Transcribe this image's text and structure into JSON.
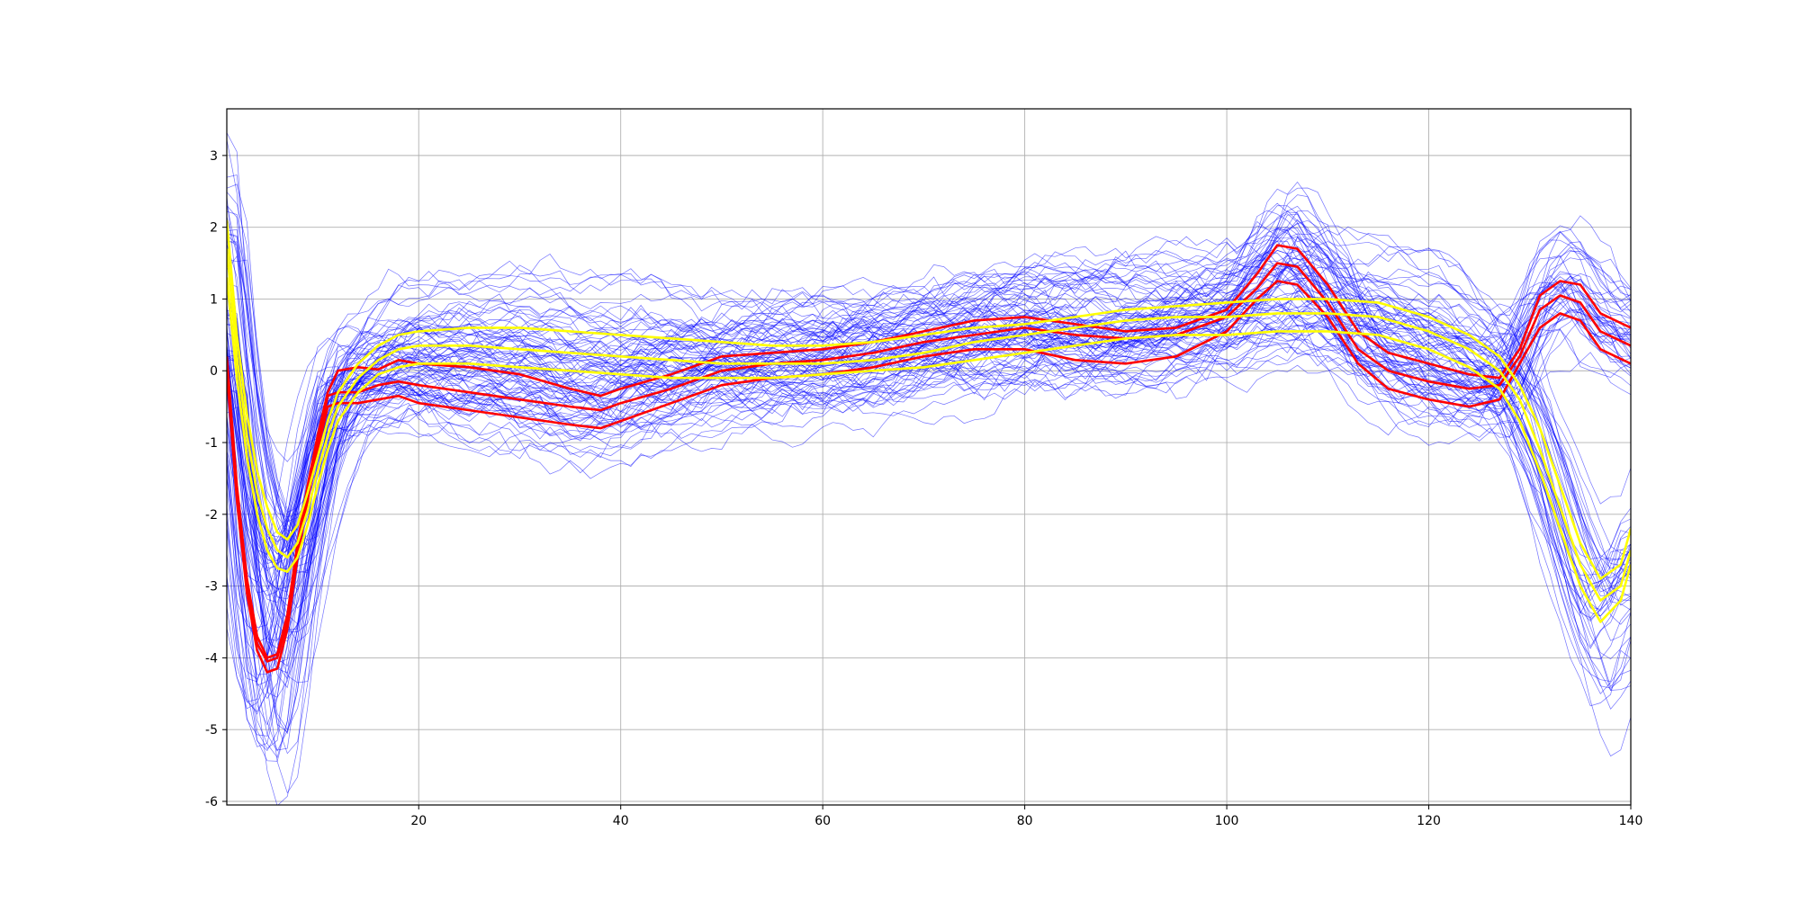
{
  "chart_data": {
    "type": "line",
    "title": "",
    "xlabel": "",
    "ylabel": "",
    "xlim": [
      1,
      140
    ],
    "ylim": [
      -6.05,
      3.65
    ],
    "x_ticks": [
      20,
      40,
      60,
      80,
      100,
      120,
      140
    ],
    "y_ticks": [
      3,
      2,
      1,
      0,
      -1,
      -2,
      -3,
      -4,
      -5,
      -6
    ],
    "x_tick_labels": [
      "20",
      "40",
      "60",
      "80",
      "100",
      "120",
      "140"
    ],
    "y_tick_labels": [
      "3",
      "2",
      "1",
      "0",
      "-1",
      "-2",
      "-3",
      "-4",
      "-5",
      "-6"
    ],
    "grid": true,
    "legend": "none",
    "colors": {
      "individual": "#0000ff",
      "cluster_red": "#ff0000",
      "cluster_yellow": "#ffff00"
    },
    "background_series_count": 90,
    "series": [
      {
        "group": "red",
        "x": [
          1,
          2,
          3,
          4,
          5,
          6,
          7,
          8,
          9,
          10,
          11,
          12,
          14,
          16,
          18,
          20,
          25,
          30,
          35,
          38,
          40,
          45,
          50,
          55,
          60,
          65,
          70,
          75,
          80,
          85,
          90,
          95,
          100,
          103,
          105,
          107,
          110,
          113,
          116,
          120,
          124,
          127,
          129,
          131,
          133,
          135,
          137,
          140
        ],
        "values": [
          0.2,
          -1.6,
          -2.9,
          -3.7,
          -4.0,
          -3.95,
          -3.4,
          -2.4,
          -1.6,
          -0.9,
          -0.3,
          0.0,
          0.05,
          0.02,
          0.15,
          0.1,
          0.05,
          -0.05,
          -0.25,
          -0.35,
          -0.25,
          -0.05,
          0.2,
          0.25,
          0.3,
          0.4,
          0.55,
          0.7,
          0.75,
          0.65,
          0.55,
          0.6,
          0.85,
          1.35,
          1.75,
          1.7,
          1.2,
          0.55,
          0.25,
          0.1,
          -0.05,
          -0.1,
          0.3,
          1.05,
          1.25,
          1.2,
          0.8,
          0.6
        ]
      },
      {
        "group": "red",
        "x": [
          1,
          2,
          3,
          4,
          5,
          6,
          7,
          8,
          9,
          10,
          11,
          12,
          14,
          16,
          18,
          20,
          25,
          30,
          35,
          38,
          40,
          45,
          50,
          55,
          60,
          65,
          70,
          75,
          80,
          85,
          90,
          95,
          100,
          103,
          105,
          107,
          110,
          113,
          116,
          120,
          124,
          127,
          129,
          131,
          133,
          135,
          137,
          140
        ],
        "values": [
          0.1,
          -1.7,
          -3.0,
          -3.8,
          -4.05,
          -4.0,
          -3.5,
          -2.5,
          -1.7,
          -1.0,
          -0.35,
          -0.3,
          -0.3,
          -0.2,
          -0.15,
          -0.2,
          -0.3,
          -0.4,
          -0.5,
          -0.55,
          -0.45,
          -0.25,
          0.0,
          0.1,
          0.15,
          0.25,
          0.4,
          0.5,
          0.6,
          0.5,
          0.45,
          0.5,
          0.75,
          1.15,
          1.5,
          1.45,
          0.95,
          0.3,
          0.0,
          -0.15,
          -0.25,
          -0.2,
          0.2,
          0.85,
          1.05,
          0.95,
          0.55,
          0.35
        ]
      },
      {
        "group": "red",
        "x": [
          1,
          2,
          3,
          4,
          5,
          6,
          7,
          8,
          9,
          10,
          11,
          12,
          14,
          16,
          18,
          20,
          25,
          30,
          35,
          38,
          40,
          45,
          50,
          55,
          60,
          65,
          70,
          75,
          80,
          85,
          90,
          95,
          100,
          103,
          105,
          107,
          110,
          113,
          116,
          120,
          124,
          127,
          129,
          131,
          133,
          135,
          137,
          140
        ],
        "values": [
          0.0,
          -1.8,
          -3.1,
          -3.9,
          -4.2,
          -4.15,
          -3.6,
          -2.6,
          -1.8,
          -1.1,
          -0.5,
          -0.45,
          -0.45,
          -0.4,
          -0.35,
          -0.45,
          -0.55,
          -0.65,
          -0.75,
          -0.8,
          -0.7,
          -0.45,
          -0.2,
          -0.1,
          -0.05,
          0.05,
          0.2,
          0.3,
          0.3,
          0.15,
          0.1,
          0.2,
          0.55,
          1.0,
          1.25,
          1.2,
          0.75,
          0.1,
          -0.25,
          -0.4,
          -0.5,
          -0.4,
          0.1,
          0.6,
          0.8,
          0.7,
          0.3,
          0.1
        ]
      },
      {
        "group": "yellow",
        "x": [
          1,
          2,
          3,
          4,
          5,
          6,
          7,
          8,
          9,
          10,
          11,
          12,
          14,
          16,
          18,
          20,
          25,
          30,
          35,
          40,
          45,
          50,
          55,
          60,
          65,
          70,
          75,
          80,
          85,
          90,
          95,
          100,
          105,
          110,
          115,
          120,
          124,
          127,
          129,
          131,
          133,
          135,
          137,
          139,
          140
        ],
        "values": [
          2.1,
          0.5,
          -0.6,
          -1.4,
          -1.9,
          -2.25,
          -2.35,
          -2.15,
          -1.7,
          -1.2,
          -0.7,
          -0.3,
          0.1,
          0.35,
          0.5,
          0.55,
          0.6,
          0.6,
          0.55,
          0.5,
          0.45,
          0.4,
          0.35,
          0.35,
          0.4,
          0.5,
          0.6,
          0.65,
          0.75,
          0.85,
          0.9,
          0.95,
          1.0,
          1.0,
          0.95,
          0.75,
          0.5,
          0.2,
          -0.2,
          -0.8,
          -1.6,
          -2.4,
          -2.9,
          -2.7,
          -2.2
        ]
      },
      {
        "group": "yellow",
        "x": [
          1,
          2,
          3,
          4,
          5,
          6,
          7,
          8,
          9,
          10,
          11,
          12,
          14,
          16,
          18,
          20,
          25,
          30,
          35,
          40,
          45,
          50,
          55,
          60,
          65,
          70,
          75,
          80,
          85,
          90,
          95,
          100,
          105,
          110,
          115,
          120,
          124,
          127,
          129,
          131,
          133,
          135,
          137,
          139,
          140
        ],
        "values": [
          1.7,
          0.2,
          -0.9,
          -1.7,
          -2.2,
          -2.5,
          -2.6,
          -2.4,
          -1.95,
          -1.4,
          -0.9,
          -0.5,
          -0.1,
          0.15,
          0.3,
          0.35,
          0.35,
          0.3,
          0.25,
          0.2,
          0.15,
          0.1,
          0.1,
          0.1,
          0.15,
          0.25,
          0.4,
          0.5,
          0.6,
          0.7,
          0.75,
          0.75,
          0.8,
          0.8,
          0.75,
          0.55,
          0.3,
          0.0,
          -0.4,
          -1.1,
          -1.9,
          -2.7,
          -3.2,
          -3.0,
          -2.5
        ]
      },
      {
        "group": "yellow",
        "x": [
          1,
          2,
          3,
          4,
          5,
          6,
          7,
          8,
          9,
          10,
          11,
          12,
          14,
          16,
          18,
          20,
          25,
          30,
          35,
          40,
          45,
          50,
          55,
          60,
          65,
          70,
          75,
          80,
          85,
          90,
          95,
          100,
          105,
          110,
          115,
          120,
          124,
          127,
          129,
          131,
          133,
          135,
          137,
          139,
          140
        ],
        "values": [
          1.3,
          -0.1,
          -1.2,
          -2.0,
          -2.5,
          -2.75,
          -2.8,
          -2.6,
          -2.15,
          -1.6,
          -1.1,
          -0.7,
          -0.3,
          -0.05,
          0.05,
          0.1,
          0.1,
          0.05,
          0.0,
          -0.05,
          -0.1,
          -0.1,
          -0.1,
          -0.05,
          0.0,
          0.05,
          0.15,
          0.25,
          0.35,
          0.45,
          0.5,
          0.5,
          0.55,
          0.55,
          0.5,
          0.3,
          0.05,
          -0.25,
          -0.7,
          -1.4,
          -2.2,
          -3.0,
          -3.5,
          -3.2,
          -2.7
        ]
      }
    ]
  }
}
